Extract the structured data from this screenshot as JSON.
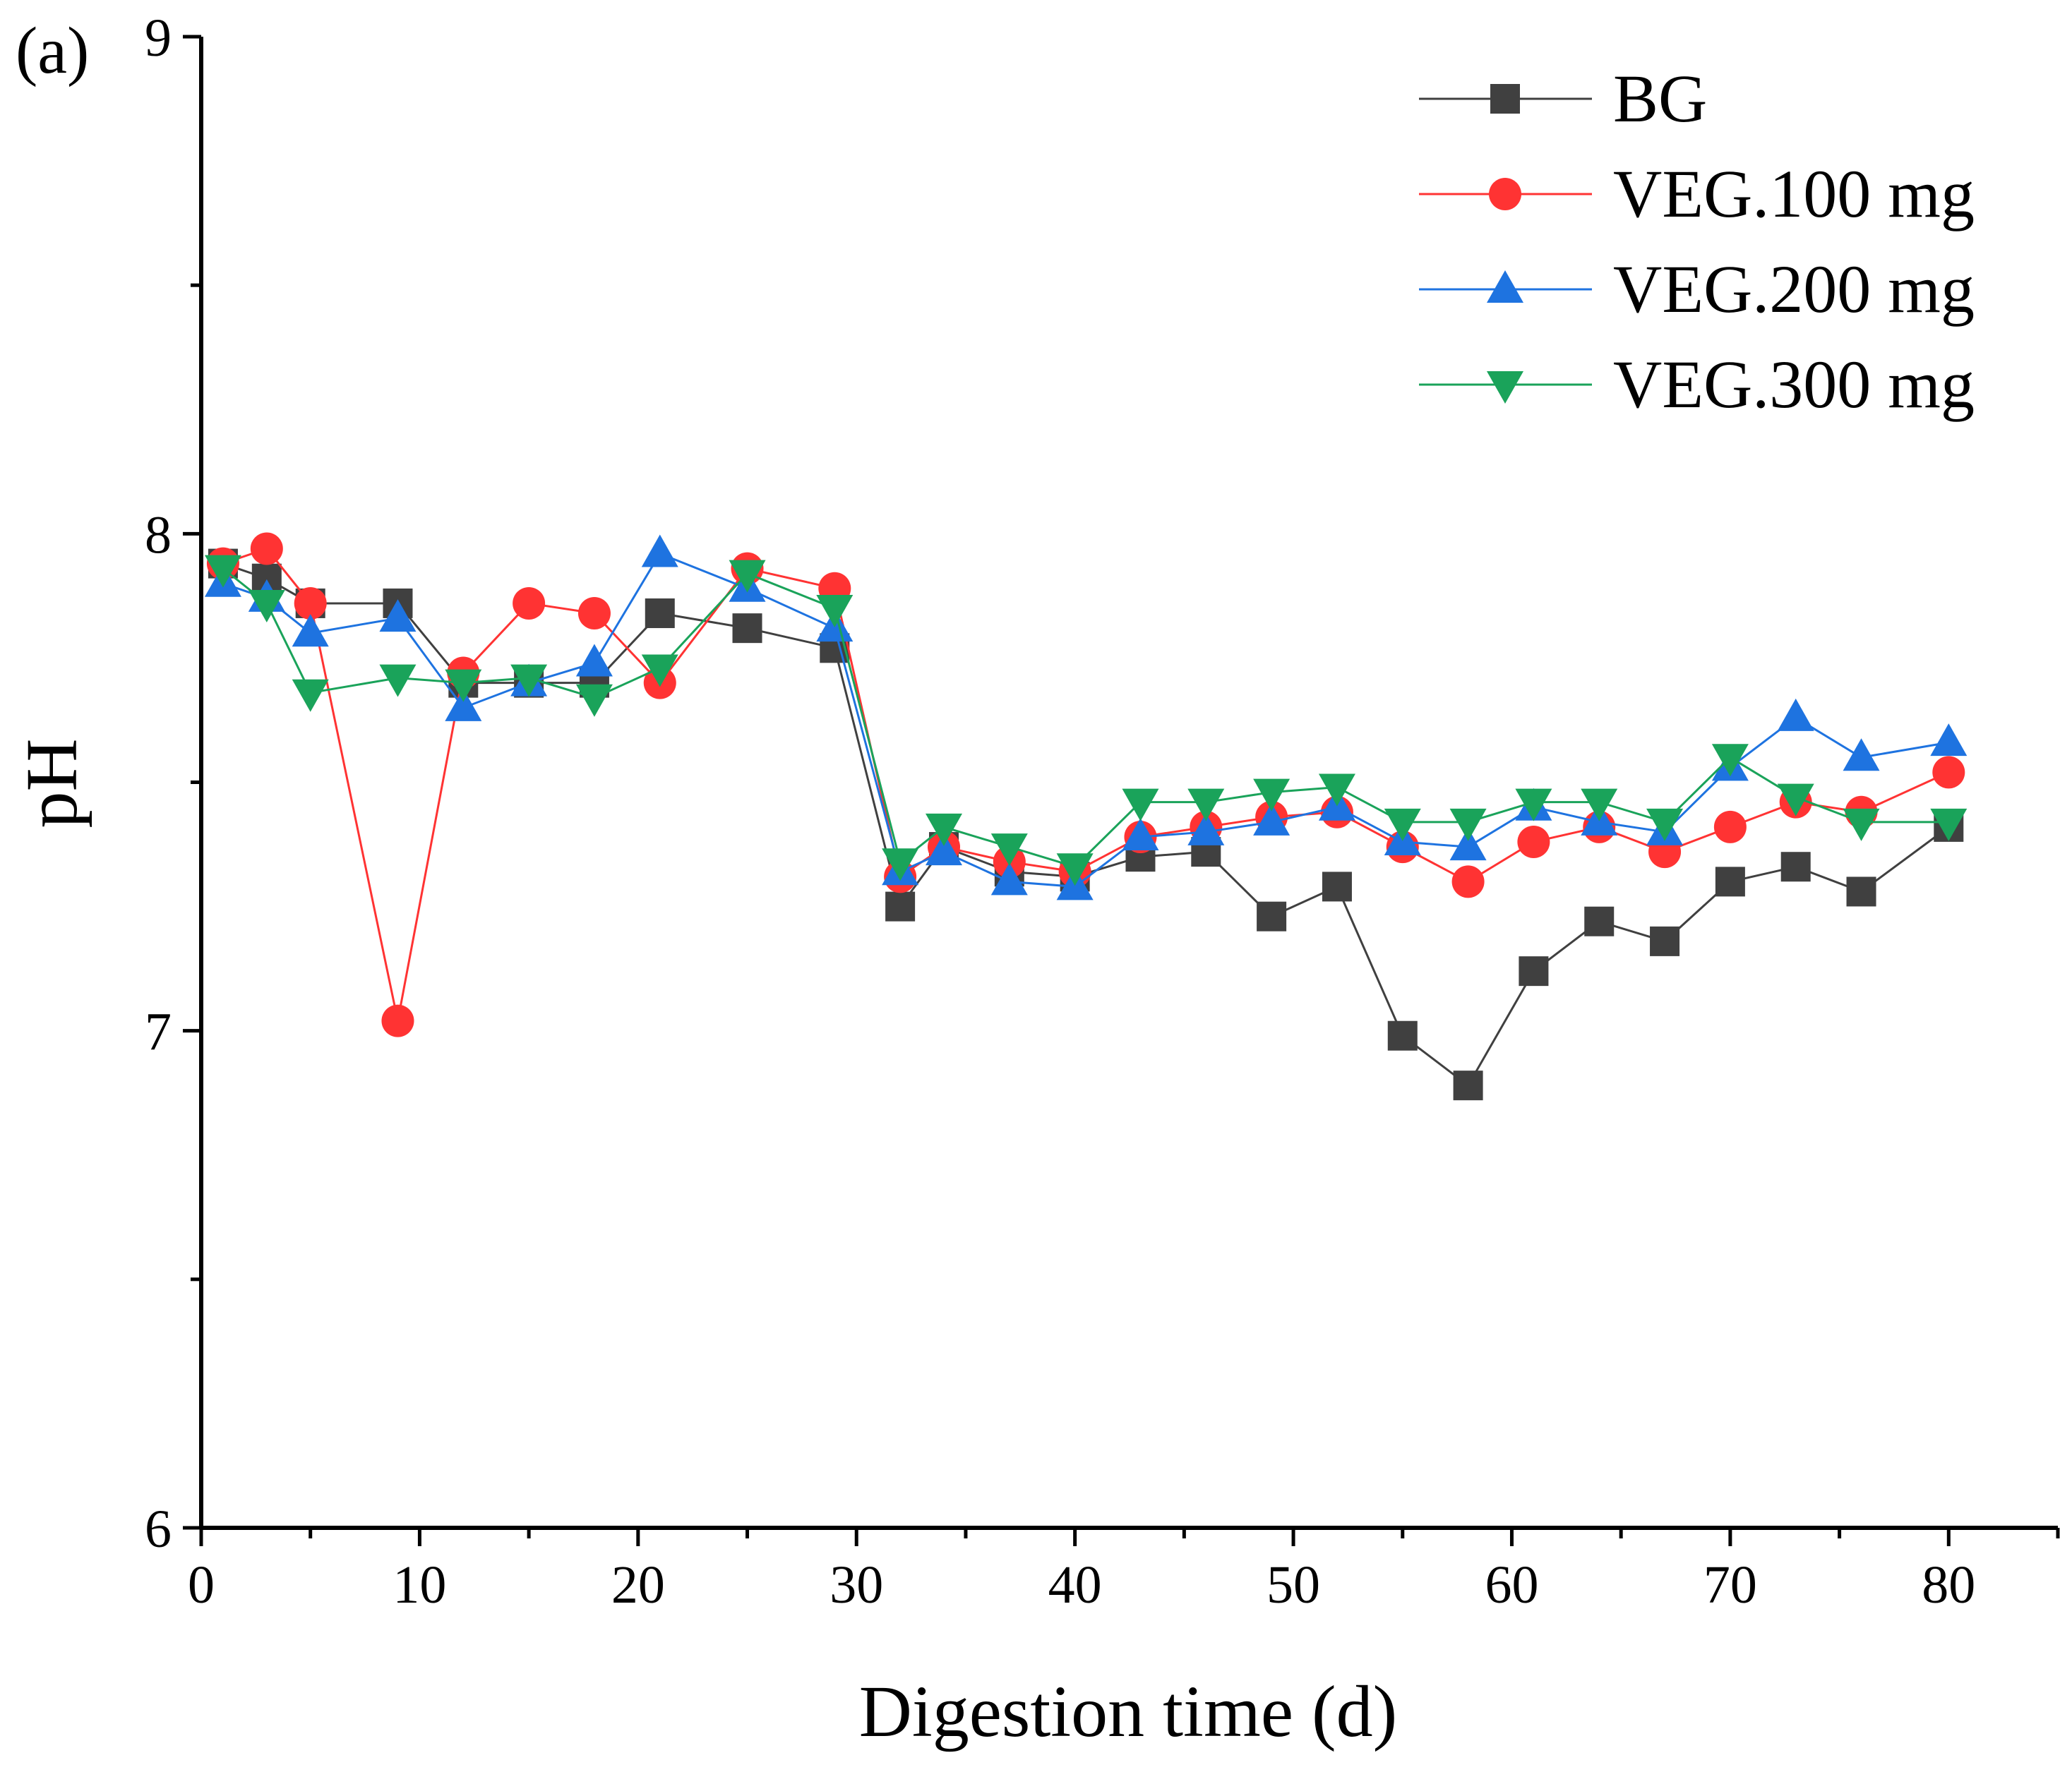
{
  "panel_label": "(a)",
  "chart_data": {
    "type": "line",
    "title": "",
    "xlabel": "Digestion time (d)",
    "ylabel": "pH",
    "xlim": [
      0,
      85
    ],
    "ylim": [
      6,
      9
    ],
    "xticks": [
      0,
      10,
      20,
      30,
      40,
      50,
      60,
      70,
      80
    ],
    "yticks": [
      6,
      7,
      8,
      9
    ],
    "x": [
      1,
      3,
      5,
      9,
      12,
      15,
      18,
      21,
      25,
      29,
      32,
      34,
      37,
      40,
      43,
      46,
      49,
      52,
      55,
      58,
      61,
      64,
      67,
      70,
      73,
      76,
      80
    ],
    "series": [
      {
        "name": "BG",
        "color": "#404040",
        "marker": "square",
        "values": [
          7.94,
          7.91,
          7.86,
          7.86,
          7.7,
          7.7,
          7.7,
          7.84,
          7.81,
          7.77,
          7.25,
          7.37,
          7.32,
          7.31,
          7.35,
          7.36,
          7.23,
          7.29,
          6.99,
          6.89,
          7.12,
          7.22,
          7.18,
          7.3,
          7.33,
          7.28,
          7.41
        ]
      },
      {
        "name": "VEG.100 mg",
        "color": "#ff3333",
        "marker": "circle",
        "values": [
          7.94,
          7.97,
          7.86,
          7.02,
          7.72,
          7.86,
          7.84,
          7.7,
          7.93,
          7.89,
          7.31,
          7.37,
          7.34,
          7.32,
          7.39,
          7.41,
          7.43,
          7.44,
          7.37,
          7.3,
          7.38,
          7.41,
          7.36,
          7.41,
          7.46,
          7.44,
          7.52
        ]
      },
      {
        "name": "VEG.200 mg",
        "color": "#1e73e0",
        "marker": "triangle-up",
        "values": [
          7.9,
          7.87,
          7.8,
          7.83,
          7.65,
          7.7,
          7.74,
          7.96,
          7.89,
          7.81,
          7.32,
          7.36,
          7.3,
          7.29,
          7.39,
          7.4,
          7.42,
          7.45,
          7.38,
          7.37,
          7.45,
          7.42,
          7.4,
          7.53,
          7.63,
          7.55,
          7.58
        ]
      },
      {
        "name": "VEG.300 mg",
        "color": "#1aa35a",
        "marker": "triangle-down",
        "values": [
          7.93,
          7.86,
          7.68,
          7.71,
          7.7,
          7.71,
          7.67,
          7.73,
          7.92,
          7.85,
          7.34,
          7.41,
          7.37,
          7.33,
          7.46,
          7.46,
          7.48,
          7.49,
          7.42,
          7.42,
          7.46,
          7.46,
          7.42,
          7.55,
          7.47,
          7.42,
          7.42
        ]
      }
    ],
    "legend": "top-right",
    "grid": false
  }
}
